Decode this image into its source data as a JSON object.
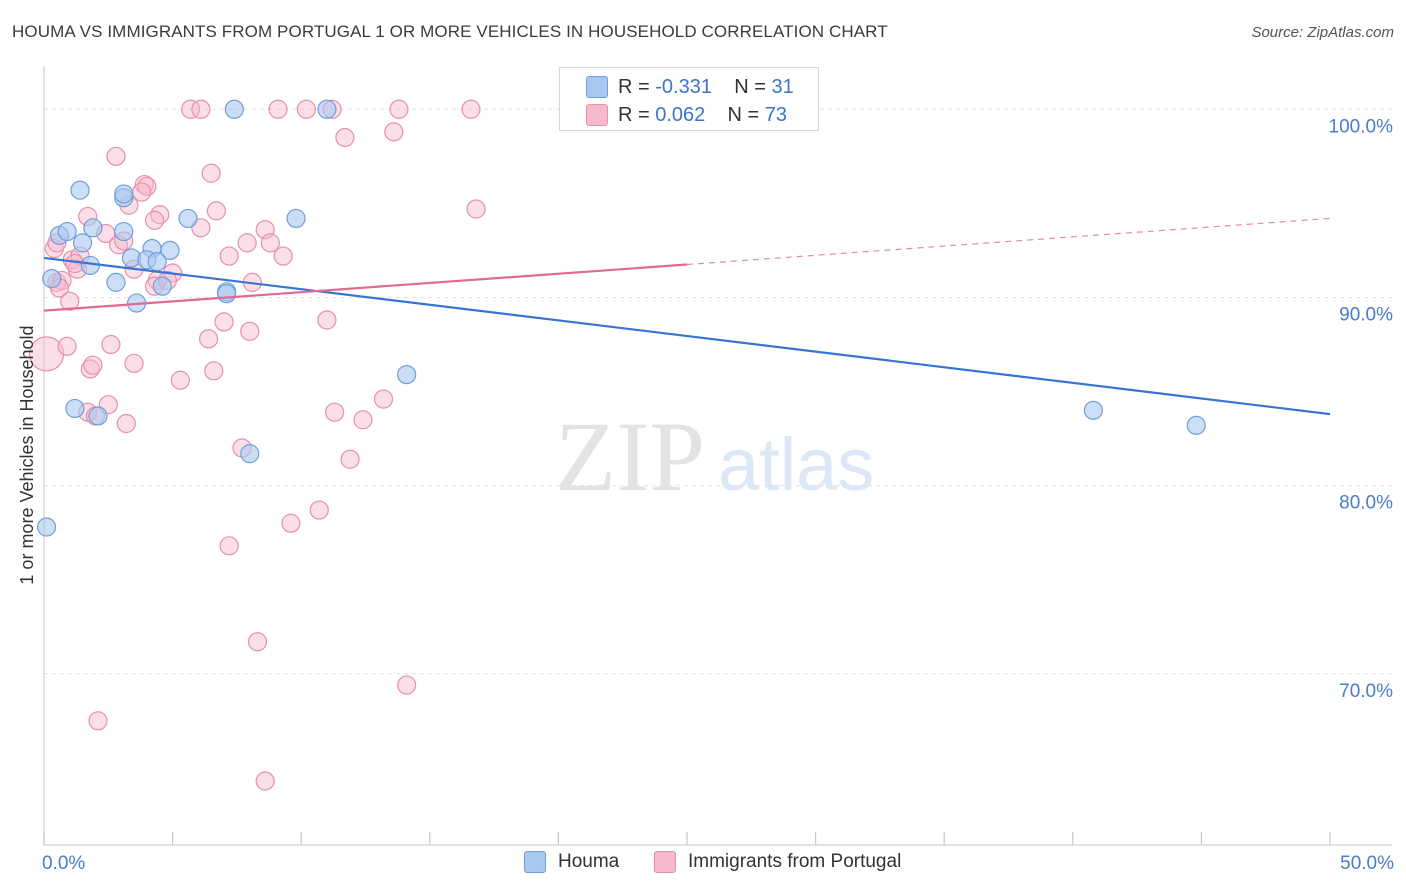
{
  "title": "HOUMA VS IMMIGRANTS FROM PORTUGAL 1 OR MORE VEHICLES IN HOUSEHOLD CORRELATION CHART",
  "source": "Source: ZipAtlas.com",
  "watermark": {
    "zip": "ZIP",
    "atlas": "atlas"
  },
  "legend_top": {
    "rows": [
      {
        "r_label": "R = ",
        "r_value": "-0.331",
        "n_label": "N = ",
        "n_value": "31"
      },
      {
        "r_label": "R = ",
        "r_value": "0.062",
        "n_label": "N = ",
        "n_value": "73"
      }
    ]
  },
  "legend_bottom": {
    "series1": "Houma",
    "series2": "Immigrants from Portugal"
  },
  "colors": {
    "houma_fill": "#a9c8f0",
    "houma_stroke": "#6f9fdc",
    "houma_line": "#3874d4",
    "portugal_fill": "#f6b9cd",
    "portugal_stroke": "#e88eae",
    "portugal_line": "#e06a95",
    "grid": "#e2e2e2",
    "axis_text": "#4a7cc9"
  },
  "chart_data": {
    "type": "scatter",
    "title": "HOUMA VS IMMIGRANTS FROM PORTUGAL 1 OR MORE VEHICLES IN HOUSEHOLD CORRELATION CHART",
    "xlabel": "",
    "ylabel": "1 or more Vehicles in Household",
    "xlim": [
      0,
      50
    ],
    "ylim": [
      60.9,
      102.3
    ],
    "x_tick_labels": [
      {
        "value": 0,
        "label": "0.0%"
      },
      {
        "value": 50,
        "label": "50.0%"
      }
    ],
    "y_tick_labels": [
      {
        "value": 100,
        "label": "100.0%"
      },
      {
        "value": 90,
        "label": "90.0%"
      },
      {
        "value": 80,
        "label": "80.0%"
      },
      {
        "value": 70,
        "label": "70.0%"
      }
    ],
    "series": [
      {
        "name": "Houma",
        "r": -0.331,
        "n": 31,
        "trend": {
          "x0": 0,
          "y0": 92.1,
          "x1": 50,
          "y1": 83.8,
          "solid_until": 50
        },
        "points": [
          [
            7.4,
            100
          ],
          [
            11.0,
            100
          ],
          [
            1.4,
            95.7
          ],
          [
            3.1,
            95.3
          ],
          [
            3.1,
            95.5
          ],
          [
            5.6,
            94.2
          ],
          [
            9.8,
            94.2
          ],
          [
            0.6,
            93.3
          ],
          [
            0.9,
            93.5
          ],
          [
            1.9,
            93.7
          ],
          [
            3.1,
            93.5
          ],
          [
            1.5,
            92.9
          ],
          [
            4.2,
            92.6
          ],
          [
            4.9,
            92.5
          ],
          [
            3.4,
            92.1
          ],
          [
            1.8,
            91.7
          ],
          [
            4.0,
            92.0
          ],
          [
            4.4,
            91.9
          ],
          [
            0.3,
            91.0
          ],
          [
            2.8,
            90.8
          ],
          [
            4.6,
            90.6
          ],
          [
            7.1,
            90.3
          ],
          [
            3.6,
            89.7
          ],
          [
            14.1,
            85.9
          ],
          [
            1.2,
            84.1
          ],
          [
            2.1,
            83.7
          ],
          [
            40.8,
            84.0
          ],
          [
            44.8,
            83.2
          ],
          [
            8.0,
            81.7
          ],
          [
            0.1,
            77.8
          ],
          [
            7.1,
            90.2
          ]
        ]
      },
      {
        "name": "Immigrants from Portugal",
        "r": 0.062,
        "n": 73,
        "trend": {
          "x0": 0,
          "y0": 89.3,
          "x1": 50,
          "y1": 94.2,
          "solid_until": 25
        },
        "points": [
          [
            5.7,
            100
          ],
          [
            6.1,
            100
          ],
          [
            9.1,
            100
          ],
          [
            10.2,
            100
          ],
          [
            11.2,
            100
          ],
          [
            13.8,
            100
          ],
          [
            16.6,
            100
          ],
          [
            11.7,
            98.5
          ],
          [
            13.6,
            98.8
          ],
          [
            2.8,
            97.5
          ],
          [
            6.5,
            96.6
          ],
          [
            3.9,
            96.0
          ],
          [
            4.0,
            95.9
          ],
          [
            3.8,
            95.6
          ],
          [
            3.3,
            94.9
          ],
          [
            16.8,
            94.7
          ],
          [
            6.7,
            94.6
          ],
          [
            4.5,
            94.4
          ],
          [
            1.7,
            94.3
          ],
          [
            4.3,
            94.1
          ],
          [
            6.1,
            93.7
          ],
          [
            8.6,
            93.6
          ],
          [
            2.4,
            93.4
          ],
          [
            7.9,
            92.9
          ],
          [
            8.8,
            92.9
          ],
          [
            2.9,
            92.8
          ],
          [
            3.1,
            93.0
          ],
          [
            0.4,
            92.6
          ],
          [
            0.5,
            92.9
          ],
          [
            9.3,
            92.2
          ],
          [
            7.2,
            92.2
          ],
          [
            1.1,
            92.0
          ],
          [
            1.4,
            92.2
          ],
          [
            1.3,
            91.5
          ],
          [
            3.5,
            91.5
          ],
          [
            5.0,
            91.3
          ],
          [
            4.4,
            90.9
          ],
          [
            0.5,
            90.8
          ],
          [
            0.7,
            90.9
          ],
          [
            8.1,
            90.8
          ],
          [
            4.3,
            90.6
          ],
          [
            0.6,
            90.5
          ],
          [
            1.0,
            89.8
          ],
          [
            7.0,
            88.7
          ],
          [
            11.0,
            88.8
          ],
          [
            6.4,
            87.8
          ],
          [
            0.1,
            87.0
          ],
          [
            0.9,
            87.4
          ],
          [
            2.6,
            87.5
          ],
          [
            3.5,
            86.5
          ],
          [
            1.8,
            86.2
          ],
          [
            1.9,
            86.4
          ],
          [
            6.6,
            86.1
          ],
          [
            5.3,
            85.6
          ],
          [
            13.2,
            84.6
          ],
          [
            2.5,
            84.3
          ],
          [
            1.7,
            83.9
          ],
          [
            11.3,
            83.9
          ],
          [
            12.4,
            83.5
          ],
          [
            3.2,
            83.3
          ],
          [
            2.0,
            83.7
          ],
          [
            7.7,
            82.0
          ],
          [
            11.9,
            81.4
          ],
          [
            10.7,
            78.7
          ],
          [
            9.6,
            78.0
          ],
          [
            7.2,
            76.8
          ],
          [
            8.3,
            71.7
          ],
          [
            14.1,
            69.4
          ],
          [
            2.1,
            67.5
          ],
          [
            8.6,
            64.3
          ],
          [
            1.2,
            91.8
          ],
          [
            4.8,
            90.9
          ],
          [
            8.0,
            88.2
          ]
        ]
      }
    ]
  }
}
